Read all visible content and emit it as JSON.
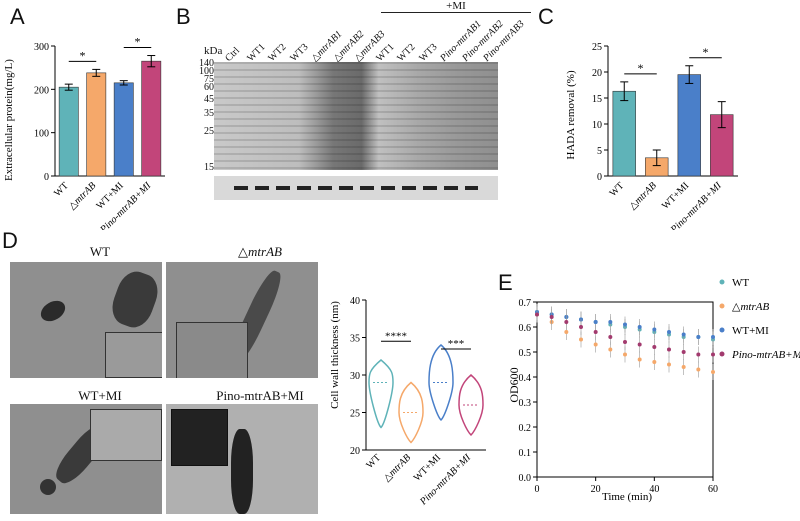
{
  "panels": {
    "a": "A",
    "b": "B",
    "c": "C",
    "d": "D",
    "e": "E"
  },
  "colors": {
    "teal": "#5fb3b8",
    "orange": "#f5a86a",
    "blue": "#4a7fc9",
    "magenta": "#c2457a"
  },
  "panel_a": {
    "ylabel": "Extracellular protein(mg/L)",
    "yticks": [
      "0",
      "100",
      "200",
      "300"
    ],
    "categories": [
      "WT",
      "△mtrAB",
      "WT+MI",
      "Pino-mtrAB+MI"
    ],
    "sig": [
      "*",
      "*"
    ]
  },
  "panel_b": {
    "kda": "kDa",
    "markers": [
      "140",
      "100",
      "75",
      "60",
      "45",
      "35",
      "25",
      "15"
    ],
    "m_label": "M",
    "lanes": [
      "Ctrl",
      "WT1",
      "WT2",
      "WT3",
      "△mtrAB1",
      "△mtrAB2",
      "△mtrAB3",
      "WT1",
      "WT2",
      "WT3",
      "Pino-mtrAB1",
      "Pino-mtrAB2",
      "Pino-mtrAB3"
    ],
    "mi_label": "+MI"
  },
  "panel_c": {
    "ylabel": "HADA removal (%)",
    "yticks": [
      "0",
      "5",
      "10",
      "15",
      "20",
      "25"
    ],
    "categories": [
      "WT",
      "△mtrAB",
      "WT+MI",
      "Pino-mtrAB+MI"
    ],
    "sig": [
      "*",
      "*"
    ]
  },
  "panel_d": {
    "images": [
      "WT",
      "△mtrAB",
      "WT+MI",
      "Pino-mtrAB+MI"
    ],
    "ylabel": "Cell wall thickness (nm)",
    "yticks": [
      "20",
      "25",
      "30",
      "35",
      "40"
    ],
    "categories": [
      "WT",
      "△mtrAB",
      "WT+MI",
      "Pino-mtrAB+MI"
    ],
    "sig": [
      "****",
      "***"
    ]
  },
  "panel_e": {
    "ylabel": "OD600",
    "xlabel": "Time (min)",
    "yticks": [
      "0.0",
      "0.1",
      "0.2",
      "0.3",
      "0.4",
      "0.5",
      "0.6",
      "0.7"
    ],
    "xticks": [
      "0",
      "20",
      "40",
      "60"
    ],
    "legend": [
      "WT",
      "△mtrAB",
      "WT+MI",
      "Pino-mtrAB+MI"
    ]
  },
  "chart_data": [
    {
      "type": "bar",
      "panel": "A",
      "categories": [
        "WT",
        "△mtrAB",
        "WT+MI",
        "Pino-mtrAB+MI"
      ],
      "values": [
        205,
        238,
        215,
        265
      ],
      "errors": [
        7,
        8,
        5,
        13
      ],
      "ylabel": "Extracellular protein(mg/L)",
      "ylim": [
        0,
        300
      ]
    },
    {
      "type": "bar",
      "panel": "C",
      "categories": [
        "WT",
        "△mtrAB",
        "WT+MI",
        "Pino-mtrAB+MI"
      ],
      "values": [
        16.3,
        3.5,
        19.5,
        11.8
      ],
      "errors": [
        1.8,
        1.5,
        1.7,
        2.5
      ],
      "ylabel": "HADA removal (%)",
      "ylim": [
        0,
        25
      ]
    },
    {
      "type": "violin",
      "panel": "D",
      "categories": [
        "WT",
        "△mtrAB",
        "WT+MI",
        "Pino-mtrAB+MI"
      ],
      "medians": [
        29,
        25,
        29,
        26
      ],
      "ranges": [
        [
          23,
          32
        ],
        [
          21,
          29
        ],
        [
          24,
          34
        ],
        [
          22,
          30
        ]
      ],
      "ylabel": "Cell wall thickness (nm)",
      "ylim": [
        20,
        40
      ]
    },
    {
      "type": "scatter",
      "panel": "E",
      "xlabel": "Time (min)",
      "ylabel": "OD600",
      "xlim": [
        0,
        60
      ],
      "ylim": [
        0,
        0.7
      ],
      "x": [
        0,
        5,
        10,
        15,
        20,
        25,
        30,
        35,
        40,
        45,
        50,
        55,
        60
      ],
      "series": [
        {
          "name": "WT",
          "values": [
            0.66,
            0.65,
            0.64,
            0.63,
            0.62,
            0.61,
            0.6,
            0.59,
            0.58,
            0.57,
            0.56,
            0.56,
            0.55
          ]
        },
        {
          "name": "△mtrAB",
          "values": [
            0.65,
            0.62,
            0.58,
            0.55,
            0.53,
            0.51,
            0.49,
            0.47,
            0.46,
            0.45,
            0.44,
            0.43,
            0.42
          ]
        },
        {
          "name": "WT+MI",
          "values": [
            0.66,
            0.65,
            0.64,
            0.63,
            0.62,
            0.62,
            0.61,
            0.6,
            0.59,
            0.58,
            0.57,
            0.56,
            0.56
          ]
        },
        {
          "name": "Pino-mtrAB+MI",
          "values": [
            0.65,
            0.64,
            0.62,
            0.6,
            0.58,
            0.56,
            0.54,
            0.53,
            0.52,
            0.51,
            0.5,
            0.49,
            0.49
          ]
        }
      ]
    }
  ]
}
